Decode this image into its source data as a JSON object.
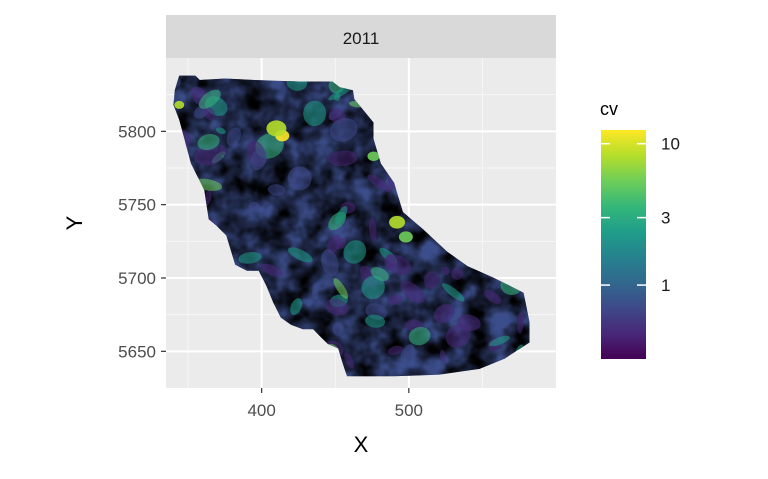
{
  "chart_data": {
    "type": "heatmap",
    "facet_title": "2011",
    "xlabel": "X",
    "ylabel": "Y",
    "xlim": [
      335,
      600
    ],
    "ylim": [
      5625,
      5850
    ],
    "x_ticks": [
      {
        "value": 400,
        "label": "400"
      },
      {
        "value": 500,
        "label": "500"
      }
    ],
    "y_ticks": [
      {
        "value": 5650,
        "label": "5650"
      },
      {
        "value": 5700,
        "label": "5700"
      },
      {
        "value": 5750,
        "label": "5750"
      },
      {
        "value": 5800,
        "label": "5800"
      }
    ],
    "x_minor": [
      350,
      450,
      550
    ],
    "y_minor": [
      5675,
      5725,
      5775,
      5825
    ],
    "grid": true,
    "legend": {
      "title": "cv",
      "placement": "right",
      "scale": "log",
      "range": [
        0.3,
        12.5
      ],
      "ticks": [
        {
          "value": 1,
          "label": "1"
        },
        {
          "value": 3,
          "label": "3"
        },
        {
          "value": 10,
          "label": "10"
        }
      ],
      "colors": [
        "#440154",
        "#482878",
        "#3e4989",
        "#31688e",
        "#26828e",
        "#1f9e89",
        "#35b779",
        "#6ece58",
        "#b5de2b",
        "#fde725"
      ]
    },
    "region_outline": [
      [
        344,
        5838
      ],
      [
        355,
        5838
      ],
      [
        358,
        5835
      ],
      [
        375,
        5836
      ],
      [
        395,
        5835
      ],
      [
        425,
        5834
      ],
      [
        448,
        5834
      ],
      [
        453,
        5830
      ],
      [
        462,
        5828
      ],
      [
        463,
        5822
      ],
      [
        476,
        5806
      ],
      [
        476,
        5795
      ],
      [
        478,
        5788
      ],
      [
        481,
        5778
      ],
      [
        490,
        5765
      ],
      [
        496,
        5745
      ],
      [
        510,
        5733
      ],
      [
        526,
        5718
      ],
      [
        540,
        5708
      ],
      [
        558,
        5700
      ],
      [
        578,
        5690
      ],
      [
        582,
        5670
      ],
      [
        582,
        5656
      ],
      [
        565,
        5645
      ],
      [
        548,
        5638
      ],
      [
        520,
        5634
      ],
      [
        490,
        5633
      ],
      [
        470,
        5633
      ],
      [
        458,
        5633
      ],
      [
        455,
        5642
      ],
      [
        452,
        5652
      ],
      [
        445,
        5655
      ],
      [
        440,
        5660
      ],
      [
        435,
        5665
      ],
      [
        428,
        5665
      ],
      [
        420,
        5668
      ],
      [
        413,
        5673
      ],
      [
        408,
        5683
      ],
      [
        403,
        5695
      ],
      [
        398,
        5705
      ],
      [
        390,
        5705
      ],
      [
        382,
        5709
      ],
      [
        376,
        5729
      ],
      [
        369,
        5736
      ],
      [
        364,
        5740
      ],
      [
        361,
        5760
      ],
      [
        352,
        5778
      ],
      [
        344,
        5808
      ],
      [
        340,
        5818
      ],
      [
        341,
        5828
      ]
    ]
  }
}
